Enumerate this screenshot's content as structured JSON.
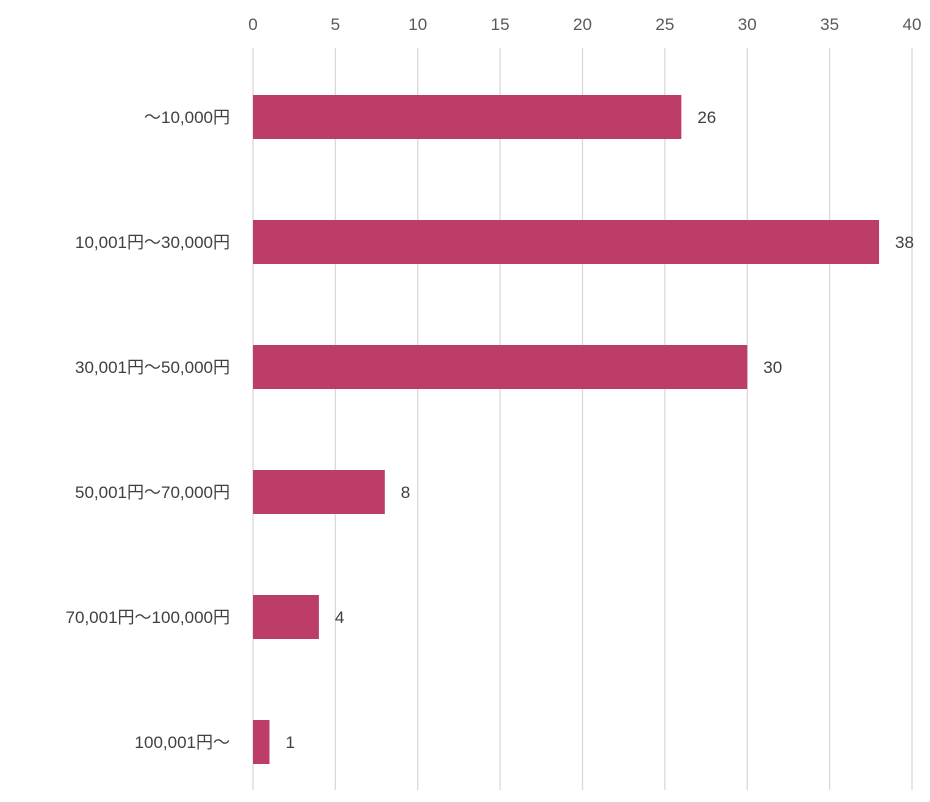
{
  "chart_data": {
    "type": "bar",
    "orientation": "horizontal",
    "categories": [
      "～10,000円",
      "10,001円～30,000円",
      "30,001円～50,000円",
      "50,001円～70,000円",
      "70,001円～100,000円",
      "100,001円～"
    ],
    "values": [
      26,
      38,
      30,
      8,
      4,
      1
    ],
    "xlim": [
      0,
      40
    ],
    "x_ticks": [
      0,
      5,
      10,
      15,
      20,
      25,
      30,
      35,
      40
    ],
    "x_axis_position": "top",
    "grid": true,
    "legend": "none",
    "data_labels": true,
    "bar_color": "#bc3d68"
  }
}
